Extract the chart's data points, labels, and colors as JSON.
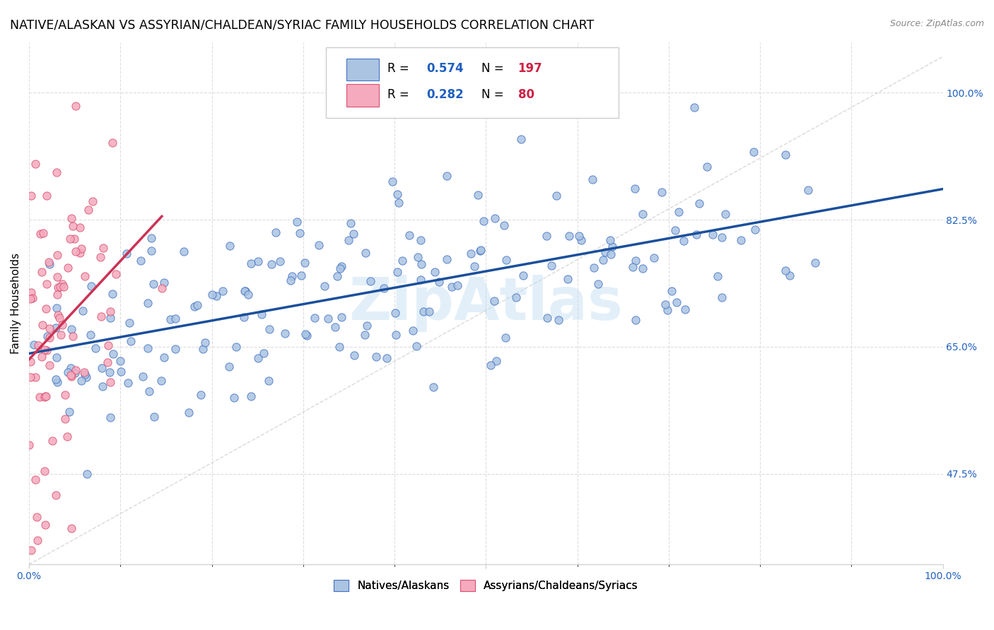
{
  "title": "NATIVE/ALASKAN VS ASSYRIAN/CHALDEAN/SYRIAC FAMILY HOUSEHOLDS CORRELATION CHART",
  "source": "Source: ZipAtlas.com",
  "ylabel": "Family Households",
  "blue_R": 0.574,
  "blue_N": 197,
  "pink_R": 0.282,
  "pink_N": 80,
  "blue_dot_color": "#aac4e2",
  "blue_edge_color": "#4472c4",
  "blue_line_color": "#1a4f9c",
  "pink_dot_color": "#f5aabe",
  "pink_edge_color": "#d94f6e",
  "pink_line_color": "#cc3355",
  "diagonal_color": "#d0d0d0",
  "text_blue": "#2060c0",
  "text_red": "#cc2244",
  "title_fontsize": 12.5,
  "watermark_text": "ZipAtlas",
  "watermark_color": "#b8d8f0",
  "background_color": "#ffffff",
  "grid_color": "#dddddd",
  "ytick_vals": [
    0.475,
    0.65,
    0.825,
    1.0
  ],
  "ytick_labels": [
    "47.5%",
    "65.0%",
    "82.5%",
    "100.0%"
  ],
  "xlim": [
    0.0,
    1.0
  ],
  "ylim": [
    0.35,
    1.07
  ]
}
